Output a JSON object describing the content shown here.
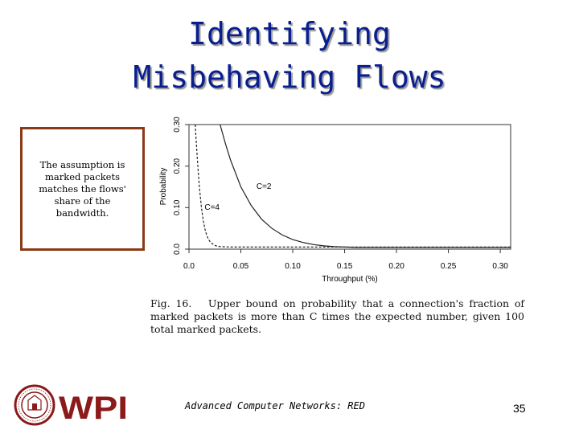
{
  "slide": {
    "title_line1": "Identifying",
    "title_line2": "Misbehaving Flows",
    "note_text": "The assumption is marked packets matches the flows' share of the bandwidth.",
    "caption_label": "Fig. 16.",
    "caption_text": "Upper bound on probability that a connection's fraction of marked packets is more than C times the expected number, given 100 total marked packets.",
    "footer_text": "Advanced Computer Networks:  RED",
    "page_number": "35",
    "logo_text": "WPI",
    "seal_text": "WORCESTER POLYTECHNIC INSTITUTE 1865"
  },
  "colors": {
    "title": "#0a1f8f",
    "note_border": "#8a3a16",
    "logo": "#8b1a1a"
  },
  "chart_data": {
    "type": "line",
    "title": "",
    "xlabel": "Throughput (%)",
    "ylabel": "Probability",
    "xlim": [
      0.0,
      0.31
    ],
    "ylim": [
      0.0,
      0.3
    ],
    "xticks": [
      "0.0",
      "0.05",
      "0.10",
      "0.15",
      "0.20",
      "0.25",
      "0.30"
    ],
    "xtick_values": [
      0.0,
      0.05,
      0.1,
      0.15,
      0.2,
      0.25,
      0.3
    ],
    "yticks": [
      "0.0",
      "0.10",
      "0.20",
      "0.30"
    ],
    "ytick_values": [
      0.0,
      0.1,
      0.2,
      0.3
    ],
    "series": [
      {
        "name": "C=2",
        "style": "solid",
        "x": [
          0.03,
          0.035,
          0.04,
          0.05,
          0.06,
          0.07,
          0.08,
          0.09,
          0.1,
          0.11,
          0.12,
          0.13,
          0.14,
          0.15,
          0.16,
          0.2,
          0.25,
          0.31
        ],
        "y": [
          0.3,
          0.255,
          0.215,
          0.15,
          0.105,
          0.072,
          0.05,
          0.034,
          0.023,
          0.016,
          0.011,
          0.008,
          0.006,
          0.005,
          0.004,
          0.004,
          0.004,
          0.004
        ]
      },
      {
        "name": "C=4",
        "style": "dashed",
        "x": [
          0.006,
          0.008,
          0.01,
          0.012,
          0.014,
          0.016,
          0.018,
          0.02,
          0.023,
          0.026,
          0.03,
          0.04,
          0.06,
          0.1,
          0.2,
          0.31
        ],
        "y": [
          0.3,
          0.22,
          0.15,
          0.1,
          0.065,
          0.042,
          0.028,
          0.019,
          0.012,
          0.008,
          0.006,
          0.005,
          0.005,
          0.005,
          0.005,
          0.005
        ]
      }
    ],
    "annotations": [
      {
        "text": "C=2",
        "x": 0.065,
        "y": 0.145
      },
      {
        "text": "C=4",
        "x": 0.015,
        "y": 0.095
      }
    ],
    "grid": false
  }
}
